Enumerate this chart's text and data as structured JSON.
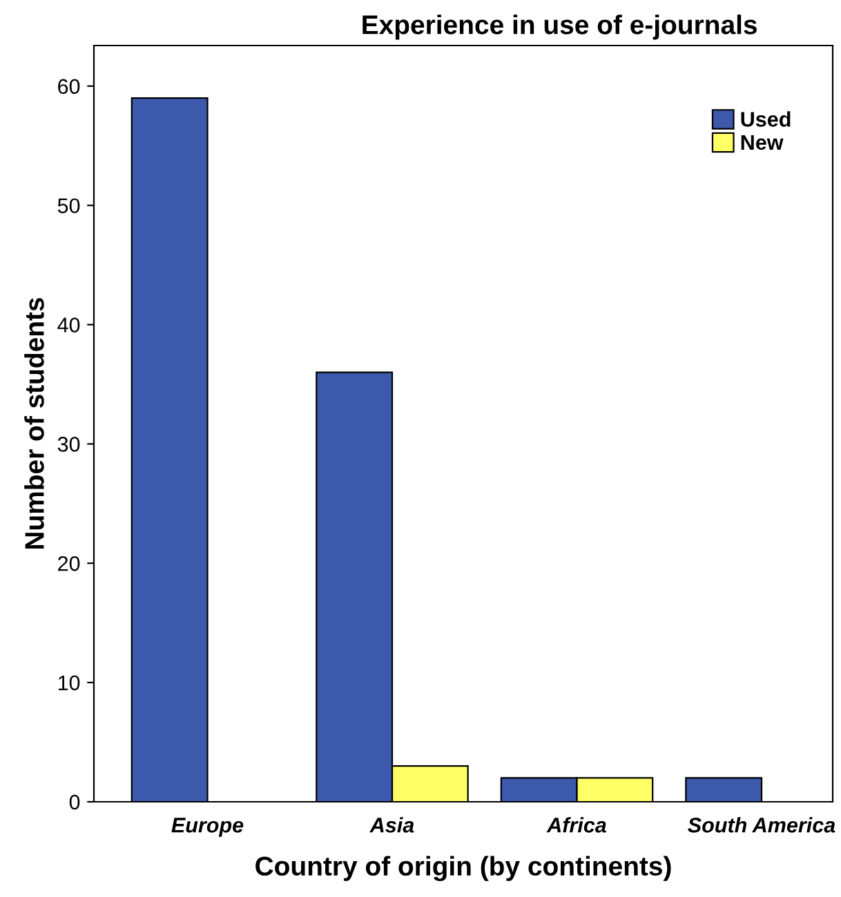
{
  "chart_data": {
    "type": "bar",
    "title": "Experience in use of e-journals",
    "xlabel": "Country of origin (by continents)",
    "ylabel": "Number of students",
    "categories": [
      "Europe",
      "Asia",
      "Africa",
      "South America"
    ],
    "series": [
      {
        "name": "Used",
        "color": "#3d59ab",
        "values": [
          59,
          36,
          2,
          2
        ]
      },
      {
        "name": "New",
        "color": "#ffff66",
        "values": [
          null,
          3,
          2,
          null
        ]
      }
    ],
    "ylim": [
      0,
      63.4
    ],
    "yticks": [
      0,
      10,
      20,
      30,
      40,
      50,
      60
    ],
    "grid": false,
    "legend": "top right"
  }
}
